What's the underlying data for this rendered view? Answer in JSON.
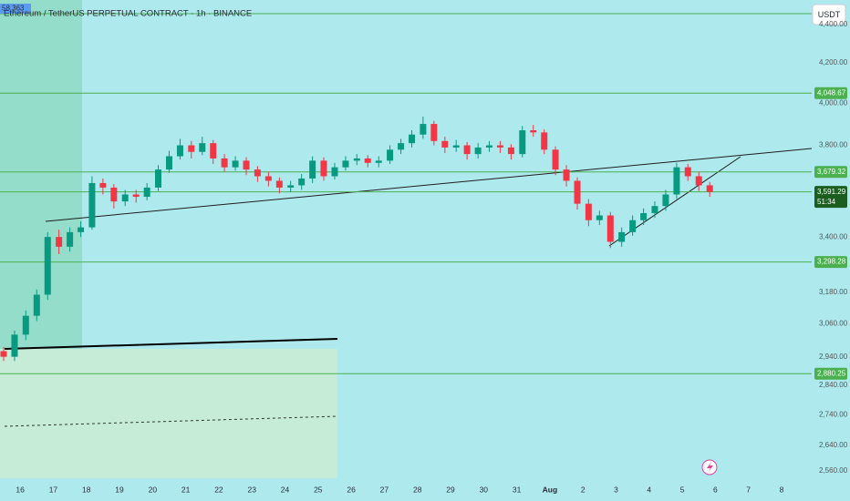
{
  "chart_data": {
    "type": "candlestick",
    "title": "Ethereum / TetherUS PERPETUAL CONTRACT · 1h · BINANCE",
    "badge": "58.363",
    "currency": "USDT",
    "log_scale": true,
    "up_color": "#089981",
    "down_color": "#f23645",
    "level_color": "#4caf50",
    "x": [
      15.5,
      15.83,
      16.17,
      16.5,
      16.83,
      17.17,
      17.5,
      17.83,
      18.17,
      18.5,
      18.83,
      19.17,
      19.5,
      19.83,
      20.17,
      20.5,
      20.83,
      21.17,
      21.5,
      21.83,
      22.17,
      22.5,
      22.83,
      23.17,
      23.5,
      23.83,
      24.17,
      24.5,
      24.83,
      25.17,
      25.5,
      25.83,
      26.17,
      26.5,
      26.83,
      27.17,
      27.5,
      27.83,
      28.17,
      28.5,
      28.83,
      29.17,
      29.5,
      29.83,
      30.17,
      30.5,
      30.83,
      31.17,
      31.5,
      31.83,
      32.17,
      32.5,
      32.83,
      33.17,
      33.5,
      33.83,
      34.17,
      34.5,
      34.83,
      35.17,
      35.5,
      35.83,
      36.17,
      36.5,
      36.83
    ],
    "open": [
      2960,
      2940,
      3020,
      3090,
      3170,
      3400,
      3360,
      3420,
      3440,
      3630,
      3610,
      3550,
      3580,
      3570,
      3610,
      3690,
      3750,
      3800,
      3770,
      3810,
      3740,
      3700,
      3730,
      3690,
      3660,
      3640,
      3610,
      3620,
      3650,
      3730,
      3660,
      3700,
      3730,
      3740,
      3720,
      3730,
      3780,
      3810,
      3850,
      3900,
      3820,
      3790,
      3800,
      3760,
      3790,
      3800,
      3790,
      3760,
      3870,
      3860,
      3780,
      3690,
      3640,
      3540,
      3470,
      3490,
      3380,
      3420,
      3470,
      3500,
      3530,
      3580,
      3700,
      3660,
      3620
    ],
    "high": [
      2975,
      3035,
      3110,
      3190,
      3420,
      3430,
      3440,
      3465,
      3660,
      3650,
      3625,
      3600,
      3600,
      3630,
      3710,
      3775,
      3830,
      3820,
      3840,
      3825,
      3760,
      3750,
      3745,
      3705,
      3680,
      3655,
      3640,
      3670,
      3750,
      3745,
      3720,
      3750,
      3760,
      3755,
      3750,
      3800,
      3830,
      3870,
      3935,
      3915,
      3840,
      3825,
      3815,
      3810,
      3820,
      3820,
      3805,
      3890,
      3895,
      3875,
      3795,
      3710,
      3655,
      3560,
      3510,
      3505,
      3440,
      3490,
      3520,
      3550,
      3600,
      3720,
      3715,
      3680,
      3635
    ],
    "low": [
      2925,
      2925,
      3000,
      3070,
      3150,
      3330,
      3340,
      3400,
      3430,
      3580,
      3520,
      3530,
      3545,
      3555,
      3595,
      3675,
      3735,
      3740,
      3755,
      3715,
      3680,
      3685,
      3665,
      3635,
      3615,
      3585,
      3590,
      3600,
      3630,
      3640,
      3645,
      3685,
      3710,
      3700,
      3700,
      3715,
      3760,
      3790,
      3830,
      3800,
      3765,
      3770,
      3735,
      3740,
      3770,
      3765,
      3735,
      3745,
      3840,
      3760,
      3665,
      3615,
      3515,
      3445,
      3450,
      3355,
      3360,
      3405,
      3450,
      3480,
      3510,
      3560,
      3640,
      3595,
      3570
    ],
    "close": [
      2940,
      3020,
      3090,
      3170,
      3400,
      3360,
      3420,
      3440,
      3630,
      3610,
      3550,
      3580,
      3570,
      3610,
      3690,
      3750,
      3800,
      3770,
      3810,
      3740,
      3700,
      3730,
      3690,
      3660,
      3640,
      3610,
      3620,
      3650,
      3730,
      3660,
      3700,
      3730,
      3740,
      3720,
      3730,
      3780,
      3810,
      3850,
      3900,
      3820,
      3790,
      3800,
      3760,
      3790,
      3800,
      3790,
      3760,
      3870,
      3860,
      3780,
      3690,
      3640,
      3540,
      3470,
      3490,
      3380,
      3420,
      3470,
      3500,
      3530,
      3580,
      3700,
      3660,
      3620,
      3591.29
    ],
    "xlim": [
      15.39,
      39.91
    ],
    "xticks": [
      16,
      17,
      18,
      19,
      20,
      21,
      22,
      23,
      24,
      25,
      26,
      27,
      28,
      29,
      30,
      31,
      {
        "value": 32,
        "label": "Aug"
      },
      {
        "value": 33,
        "label": "2"
      },
      {
        "value": 34,
        "label": "3"
      },
      {
        "value": 35,
        "label": "4"
      },
      {
        "value": 36,
        "label": "5"
      },
      {
        "value": 37,
        "label": "6"
      },
      {
        "value": 38,
        "label": "7"
      },
      {
        "value": 39,
        "label": "8"
      }
    ],
    "ylim": [
      2523,
      4533
    ],
    "yticks": [
      {
        "value": 2560,
        "label": "2,560.00"
      },
      {
        "value": 2640,
        "label": "2,640.00"
      },
      {
        "value": 2740,
        "label": "2,740.00"
      },
      {
        "value": 2840,
        "label": "2,840.00"
      },
      {
        "value": 2940,
        "label": "2,940.00"
      },
      {
        "value": 3060,
        "label": "3,060.00"
      },
      {
        "value": 3180,
        "label": "3,180.00"
      },
      {
        "value": 3400,
        "label": "3,400.00"
      },
      {
        "value": 3800,
        "label": "3,800.00"
      },
      {
        "value": 4000,
        "label": "4,000.00"
      },
      {
        "value": 4200,
        "label": "4,200.00"
      },
      {
        "value": 4400,
        "label": "4,400.00"
      }
    ],
    "levels": [
      {
        "value": 4048.67,
        "label": "4,048.67"
      },
      {
        "value": 3679.32,
        "label": "3,679.32"
      },
      {
        "value": 3298.28,
        "label": "3,298.28"
      },
      {
        "value": 2880.25,
        "label": "2,880.25"
      }
    ],
    "last_price": {
      "value": 3591.29,
      "label": "3,591.29",
      "countdown": "51:34"
    }
  }
}
